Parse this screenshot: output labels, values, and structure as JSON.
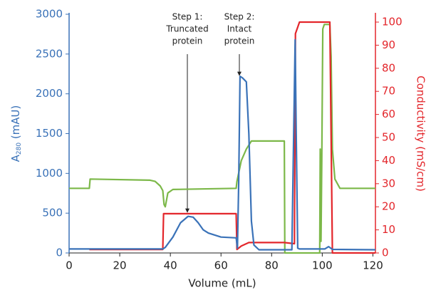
{
  "chart_data": {
    "type": "line",
    "x_label": "Volume (mL)",
    "y_label": {
      "main": "A",
      "sub": "280",
      "unit": " (mAU)"
    },
    "y2_label": "Conductivity (mS/cm)",
    "xlim": [
      0,
      121
    ],
    "xticks": [
      0,
      20,
      40,
      60,
      80,
      100,
      120
    ],
    "ylim": [
      0,
      3000
    ],
    "yticks": [
      0,
      500,
      1000,
      1500,
      2000,
      2500,
      3000
    ],
    "y2lim": [
      0,
      103.4
    ],
    "y2ticks": [
      0,
      10,
      20,
      30,
      40,
      50,
      60,
      70,
      80,
      90,
      100
    ],
    "y_color": "#3a72b8",
    "y2_color": "#e3262b",
    "series": [
      {
        "color": "#7cb849",
        "axis": "y2",
        "x": [
          0,
          8,
          8.3,
          32,
          34,
          36,
          37,
          37.5,
          38,
          39,
          41,
          66,
          66.3,
          68,
          70,
          72,
          85,
          85.2,
          99,
          99.2,
          99.5,
          99.8,
          100.2,
          100.8,
          103,
          103.5,
          104,
          105,
          107,
          121
        ],
        "values": [
          28,
          28,
          32,
          31.5,
          31,
          29,
          27,
          21,
          20,
          26,
          27.5,
          28,
          31,
          40,
          45,
          48.5,
          48.5,
          0,
          0,
          45,
          5,
          40,
          97,
          99,
          99,
          85,
          45,
          32,
          28,
          28
        ]
      },
      {
        "color": "#e3262b",
        "axis": "y2",
        "x": [
          8,
          37,
          37.3,
          66,
          66.3,
          68,
          71,
          85,
          89,
          89.4,
          91,
          103,
          104,
          121
        ],
        "values": [
          1.5,
          1.5,
          17,
          17,
          1.5,
          3,
          4.5,
          4.5,
          4,
          95,
          100,
          100,
          0,
          0
        ]
      },
      {
        "color": "#3a72b8",
        "axis": "y",
        "x": [
          0,
          37,
          38,
          41,
          44,
          47,
          49,
          51,
          53,
          55,
          60,
          66,
          66.5,
          67,
          67.5,
          68.5,
          70,
          71,
          72,
          73,
          75,
          88,
          89.3,
          89.7,
          90.3,
          91,
          101,
          102.5,
          104,
          121
        ],
        "values": [
          50,
          50,
          70,
          200,
          380,
          460,
          450,
          380,
          290,
          250,
          200,
          190,
          60,
          900,
          2220,
          2200,
          2150,
          1500,
          400,
          100,
          40,
          40,
          2680,
          1500,
          60,
          50,
          50,
          80,
          45,
          40
        ]
      }
    ],
    "annotations": [
      {
        "lines": [
          "Step 1:",
          "Truncated",
          "protein"
        ]
      },
      {
        "lines": [
          "Step 2:",
          "Intact",
          "protein"
        ]
      }
    ]
  }
}
